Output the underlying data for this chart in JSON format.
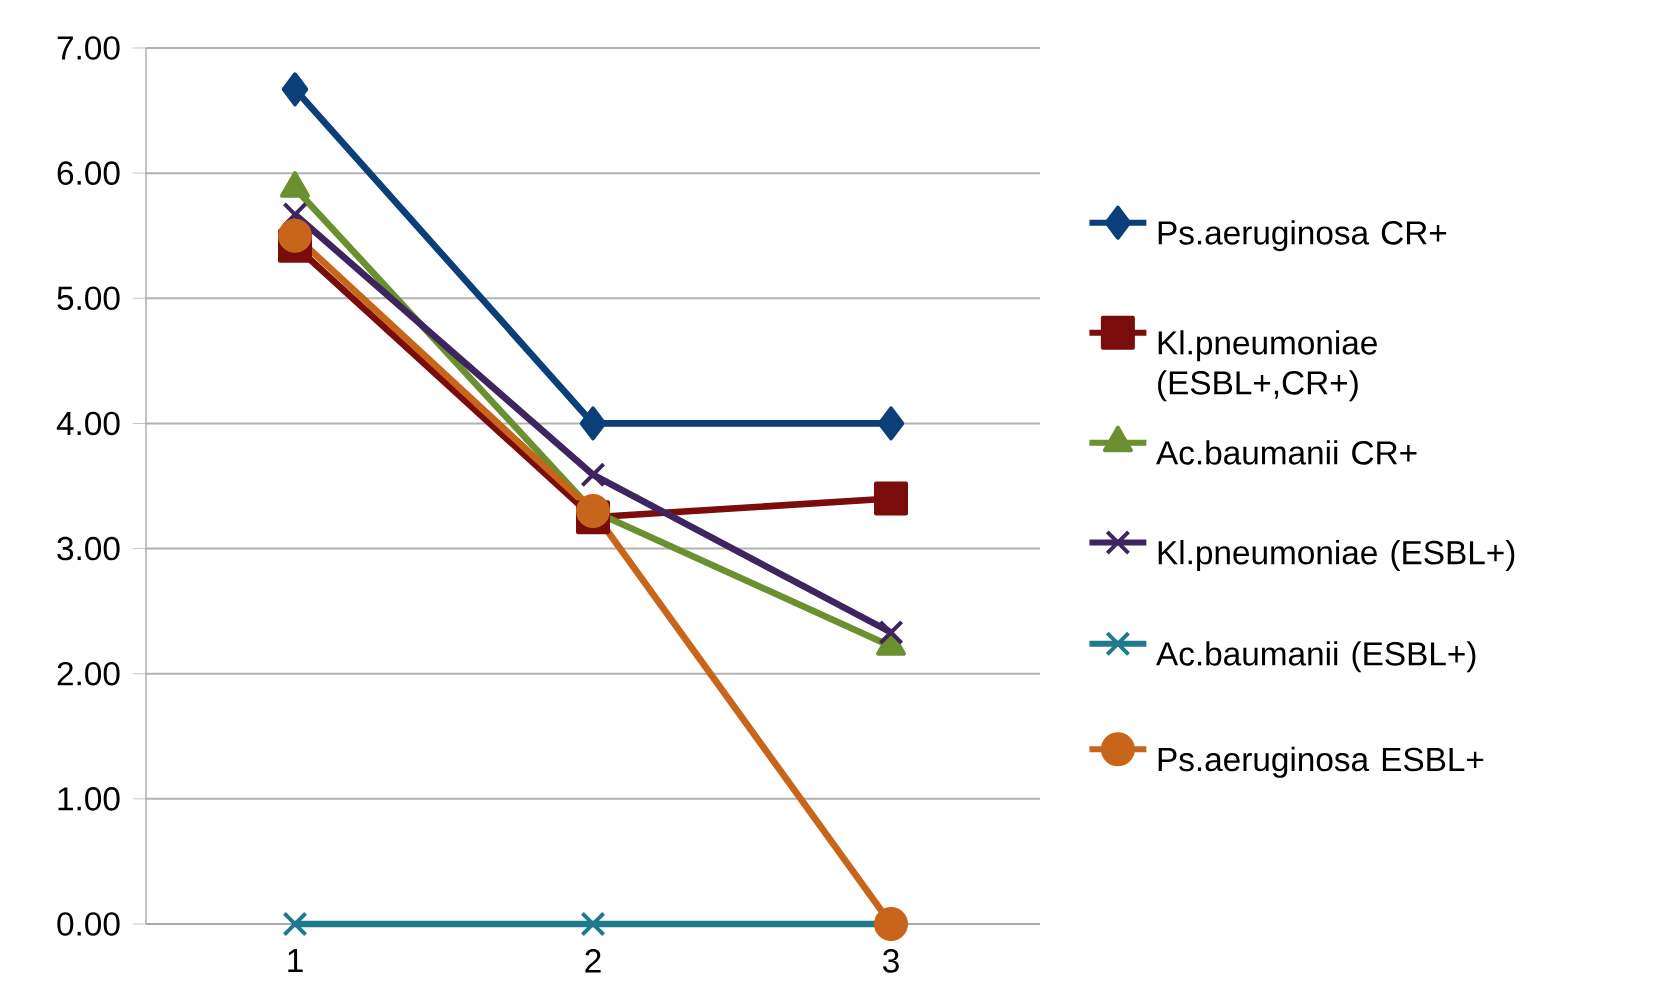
{
  "chart_data": {
    "type": "line",
    "categories": [
      "1",
      "2",
      "3"
    ],
    "series": [
      {
        "name": "Ps.aeruginosa CR+",
        "color": "#0b3f7a",
        "marker": "diamond",
        "values": [
          6.67,
          4.0,
          4.0
        ]
      },
      {
        "name": "Kl.pneumoniae (ESBL+,CR+)",
        "color": "#7a0c0c",
        "marker": "square",
        "values": [
          5.42,
          3.25,
          3.4
        ]
      },
      {
        "name": "Ac.baumanii CR+",
        "color": "#6b9030",
        "marker": "triangle",
        "values": [
          5.88,
          3.3,
          2.22
        ]
      },
      {
        "name": "Kl.pneumoniae (ESBL+)",
        "color": "#3f2560",
        "marker": "cross",
        "values": [
          5.67,
          3.59,
          2.33
        ]
      },
      {
        "name": "Ac.baumanii (ESBL+)",
        "color": "#1f7a8c",
        "marker": "cross",
        "values": [
          0,
          0,
          0
        ]
      },
      {
        "name": "Ps.aeruginosa ESBL+",
        "color": "#c8651b",
        "marker": "circle",
        "values": [
          5.5,
          3.3,
          0
        ]
      }
    ],
    "ylim": [
      0,
      7
    ],
    "yticks": [
      {
        "value": 0,
        "label": "0.00"
      },
      {
        "value": 1,
        "label": "1.00"
      },
      {
        "value": 2,
        "label": "2.00"
      },
      {
        "value": 3,
        "label": "3.00"
      },
      {
        "value": 4,
        "label": "4.00"
      },
      {
        "value": 5,
        "label": "5.00"
      },
      {
        "value": 6,
        "label": "6.00"
      },
      {
        "value": 7,
        "label": "7.00"
      }
    ],
    "grid": "y",
    "legend": "right",
    "line_style": "solid"
  }
}
